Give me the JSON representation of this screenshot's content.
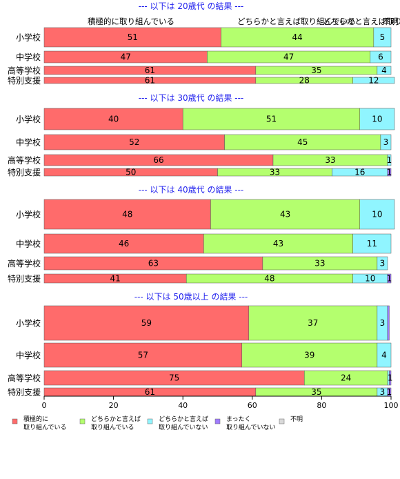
{
  "chart_data": {
    "type": "bar",
    "orientation": "horizontal",
    "stacked": true,
    "colors": [
      "#ff6b6b",
      "#b4ff6e",
      "#90f5ff",
      "#a07cff",
      "#d9d9d9"
    ],
    "categories": [
      "小学校",
      "中学校",
      "高等学校",
      "特別支援"
    ],
    "legend": {
      "placement": "bottom",
      "entries": [
        {
          "line1": "積極的に",
          "line2": "取り組んでいる"
        },
        {
          "line1": "どちらかと言えば",
          "line2": "取り組んでいる"
        },
        {
          "line1": "どちらかと言えば",
          "line2": "取り組んでいない"
        },
        {
          "line1": "まったく",
          "line2": "取り組んでいない"
        },
        {
          "line1": "不明",
          "line2": ""
        }
      ]
    },
    "header_labels": [
      "積極的に取り組んでいる",
      "どちらかと言えば取り組んでいる",
      "どちらかと言えば取り組んでいない",
      "不明"
    ],
    "xlim": [
      0,
      100
    ],
    "xticks": [
      0,
      20,
      40,
      60,
      80,
      100
    ],
    "panels": [
      {
        "title": "--- 以下は 20歳代 の結果 ---",
        "rows": [
          {
            "values": [
              51,
              44,
              5,
              0,
              0
            ],
            "labels": [
              "51",
              "44",
              "5",
              "",
              ""
            ]
          },
          {
            "values": [
              47,
              47,
              6,
              0,
              0
            ],
            "labels": [
              "47",
              "47",
              "6",
              "",
              ""
            ]
          },
          {
            "values": [
              61,
              35,
              4,
              0,
              0
            ],
            "labels": [
              "61",
              "35",
              "4",
              "",
              ""
            ]
          },
          {
            "values": [
              61,
              28,
              12,
              0,
              0
            ],
            "labels": [
              "61",
              "28",
              "12",
              "",
              ""
            ]
          }
        ]
      },
      {
        "title": "--- 以下は 30歳代 の結果 ---",
        "rows": [
          {
            "values": [
              40,
              51,
              10,
              0,
              0
            ],
            "labels": [
              "40",
              "51",
              "10",
              "",
              ""
            ]
          },
          {
            "values": [
              52,
              45,
              3,
              0,
              0
            ],
            "labels": [
              "52",
              "45",
              "3",
              "",
              ""
            ]
          },
          {
            "values": [
              66,
              33,
              1,
              0,
              0
            ],
            "labels": [
              "66",
              "33",
              "1",
              "",
              ""
            ]
          },
          {
            "values": [
              50,
              33,
              16,
              1,
              0
            ],
            "labels": [
              "50",
              "33",
              "16",
              "1",
              ""
            ]
          }
        ]
      },
      {
        "title": "--- 以下は 40歳代 の結果 ---",
        "rows": [
          {
            "values": [
              48,
              43,
              10,
              0,
              0
            ],
            "labels": [
              "48",
              "43",
              "10",
              "",
              ""
            ]
          },
          {
            "values": [
              46,
              43,
              11,
              0,
              0
            ],
            "labels": [
              "46",
              "43",
              "11",
              "",
              ""
            ]
          },
          {
            "values": [
              63,
              33,
              3,
              0,
              0
            ],
            "labels": [
              "63",
              "33",
              "3",
              "",
              ""
            ]
          },
          {
            "values": [
              41,
              48,
              10,
              1,
              0
            ],
            "labels": [
              "41",
              "48",
              "10",
              "1",
              ""
            ]
          }
        ]
      },
      {
        "title": "--- 以下は 50歳以上 の結果 ---",
        "rows": [
          {
            "values": [
              59,
              37,
              3,
              0.5,
              0
            ],
            "labels": [
              "59",
              "37",
              "3",
              "",
              ""
            ]
          },
          {
            "values": [
              57,
              39,
              4,
              0,
              0
            ],
            "labels": [
              "57",
              "39",
              "4",
              "",
              ""
            ]
          },
          {
            "values": [
              75,
              24,
              0.5,
              0.5,
              0
            ],
            "labels": [
              "75",
              "24",
              "",
              "1",
              ""
            ]
          },
          {
            "values": [
              61,
              35,
              3,
              1,
              0
            ],
            "labels": [
              "61",
              "35",
              "3",
              "1",
              ""
            ]
          }
        ]
      }
    ]
  }
}
